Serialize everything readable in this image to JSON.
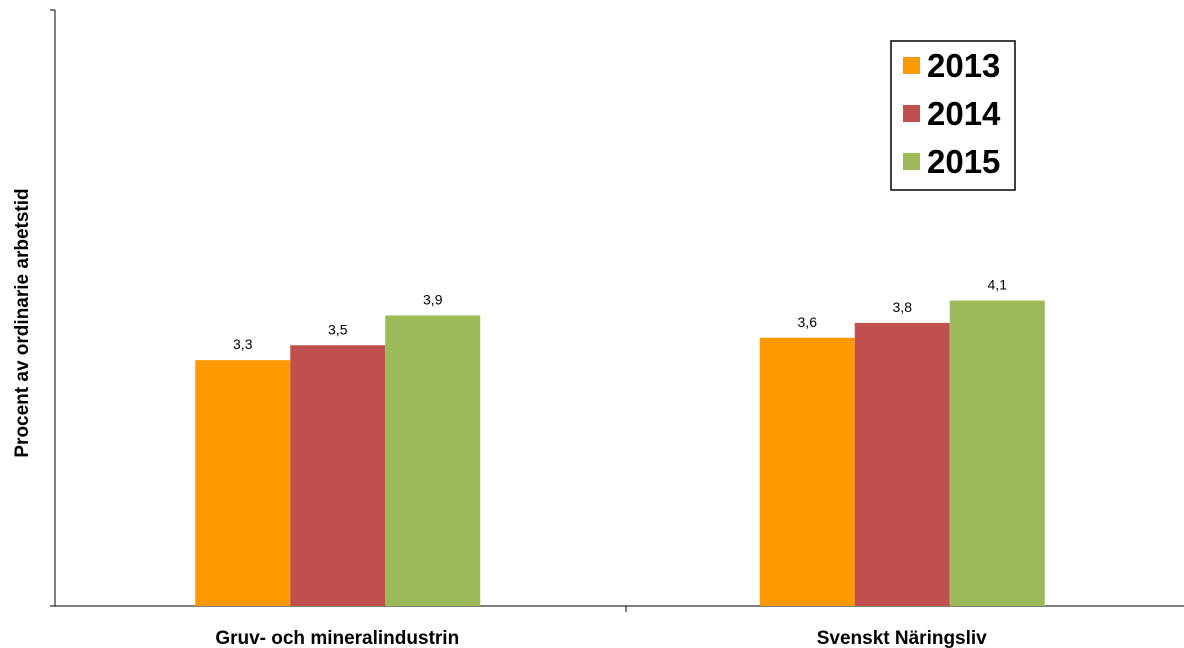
{
  "chart_data": {
    "type": "bar",
    "title": "",
    "xlabel": "",
    "ylabel": "Procent av ordinarie arbetstid",
    "categories": [
      "Gruv- och mineralindustrin",
      "Svenskt Näringsliv"
    ],
    "series": [
      {
        "name": "2013",
        "color": "#ff9900",
        "values": [
          3.3,
          3.6
        ],
        "labels": [
          "3,3",
          "3,6"
        ]
      },
      {
        "name": "2014",
        "color": "#c0504d",
        "values": [
          3.5,
          3.8
        ],
        "labels": [
          "3,5",
          "3,8"
        ]
      },
      {
        "name": "2015",
        "color": "#9bbb59",
        "values": [
          3.9,
          4.1
        ],
        "labels": [
          "3,9",
          "4,1"
        ]
      }
    ],
    "ylim": [
      0,
      8
    ],
    "grid": false,
    "legend": "top-right",
    "y_ticks_labeled": false
  }
}
